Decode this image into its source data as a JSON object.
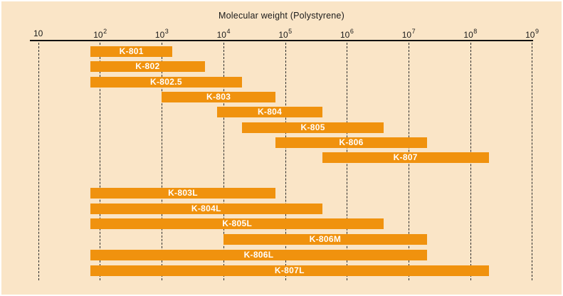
{
  "chart_data": {
    "type": "bar",
    "subtype": "horizontal-log-range",
    "title": "Molecular weight (Polystyrene)",
    "xlabel": "Molecular weight (Polystyrene)",
    "ylabel": "",
    "x_axis": {
      "scale": "log10",
      "xlim": [
        10,
        1000000000
      ],
      "tick_exponents": [
        1,
        2,
        3,
        4,
        5,
        6,
        7,
        8,
        9
      ],
      "tick_labels": [
        "10",
        "10²",
        "10³",
        "10⁴",
        "10⁵",
        "10⁶",
        "10⁷",
        "10⁸",
        "10⁹"
      ],
      "gridlines": "vertical-dashed"
    },
    "legend": "none",
    "series": [
      {
        "label": "K-801",
        "group": 1,
        "mw_min": 70,
        "mw_max": 1500
      },
      {
        "label": "K-802",
        "group": 1,
        "mw_min": 70,
        "mw_max": 5000
      },
      {
        "label": "K-802.5",
        "group": 1,
        "mw_min": 70,
        "mw_max": 20000
      },
      {
        "label": "K-803",
        "group": 1,
        "mw_min": 1000,
        "mw_max": 70000
      },
      {
        "label": "K-804",
        "group": 1,
        "mw_min": 8000,
        "mw_max": 400000
      },
      {
        "label": "K-805",
        "group": 1,
        "mw_min": 20000,
        "mw_max": 4000000
      },
      {
        "label": "K-806",
        "group": 1,
        "mw_min": 70000,
        "mw_max": 20000000
      },
      {
        "label": "K-807",
        "group": 1,
        "mw_min": 400000,
        "mw_max": 200000000
      },
      {
        "label": "K-803L",
        "group": 2,
        "mw_min": 70,
        "mw_max": 70000
      },
      {
        "label": "K-804L",
        "group": 2,
        "mw_min": 70,
        "mw_max": 400000
      },
      {
        "label": "K-805L",
        "group": 2,
        "mw_min": 70,
        "mw_max": 4000000
      },
      {
        "label": "K-806M",
        "group": 2,
        "mw_min": 10000,
        "mw_max": 20000000
      },
      {
        "label": "K-806L",
        "group": 2,
        "mw_min": 70,
        "mw_max": 20000000
      },
      {
        "label": "K-807L",
        "group": 2,
        "mw_min": 70,
        "mw_max": 200000000
      }
    ],
    "colors": {
      "background": "#FAE5C7",
      "bar": "#F0920E",
      "bar_label": "#FFFFFF",
      "axis": "#111111",
      "gridline": "#2B2B2B"
    }
  }
}
